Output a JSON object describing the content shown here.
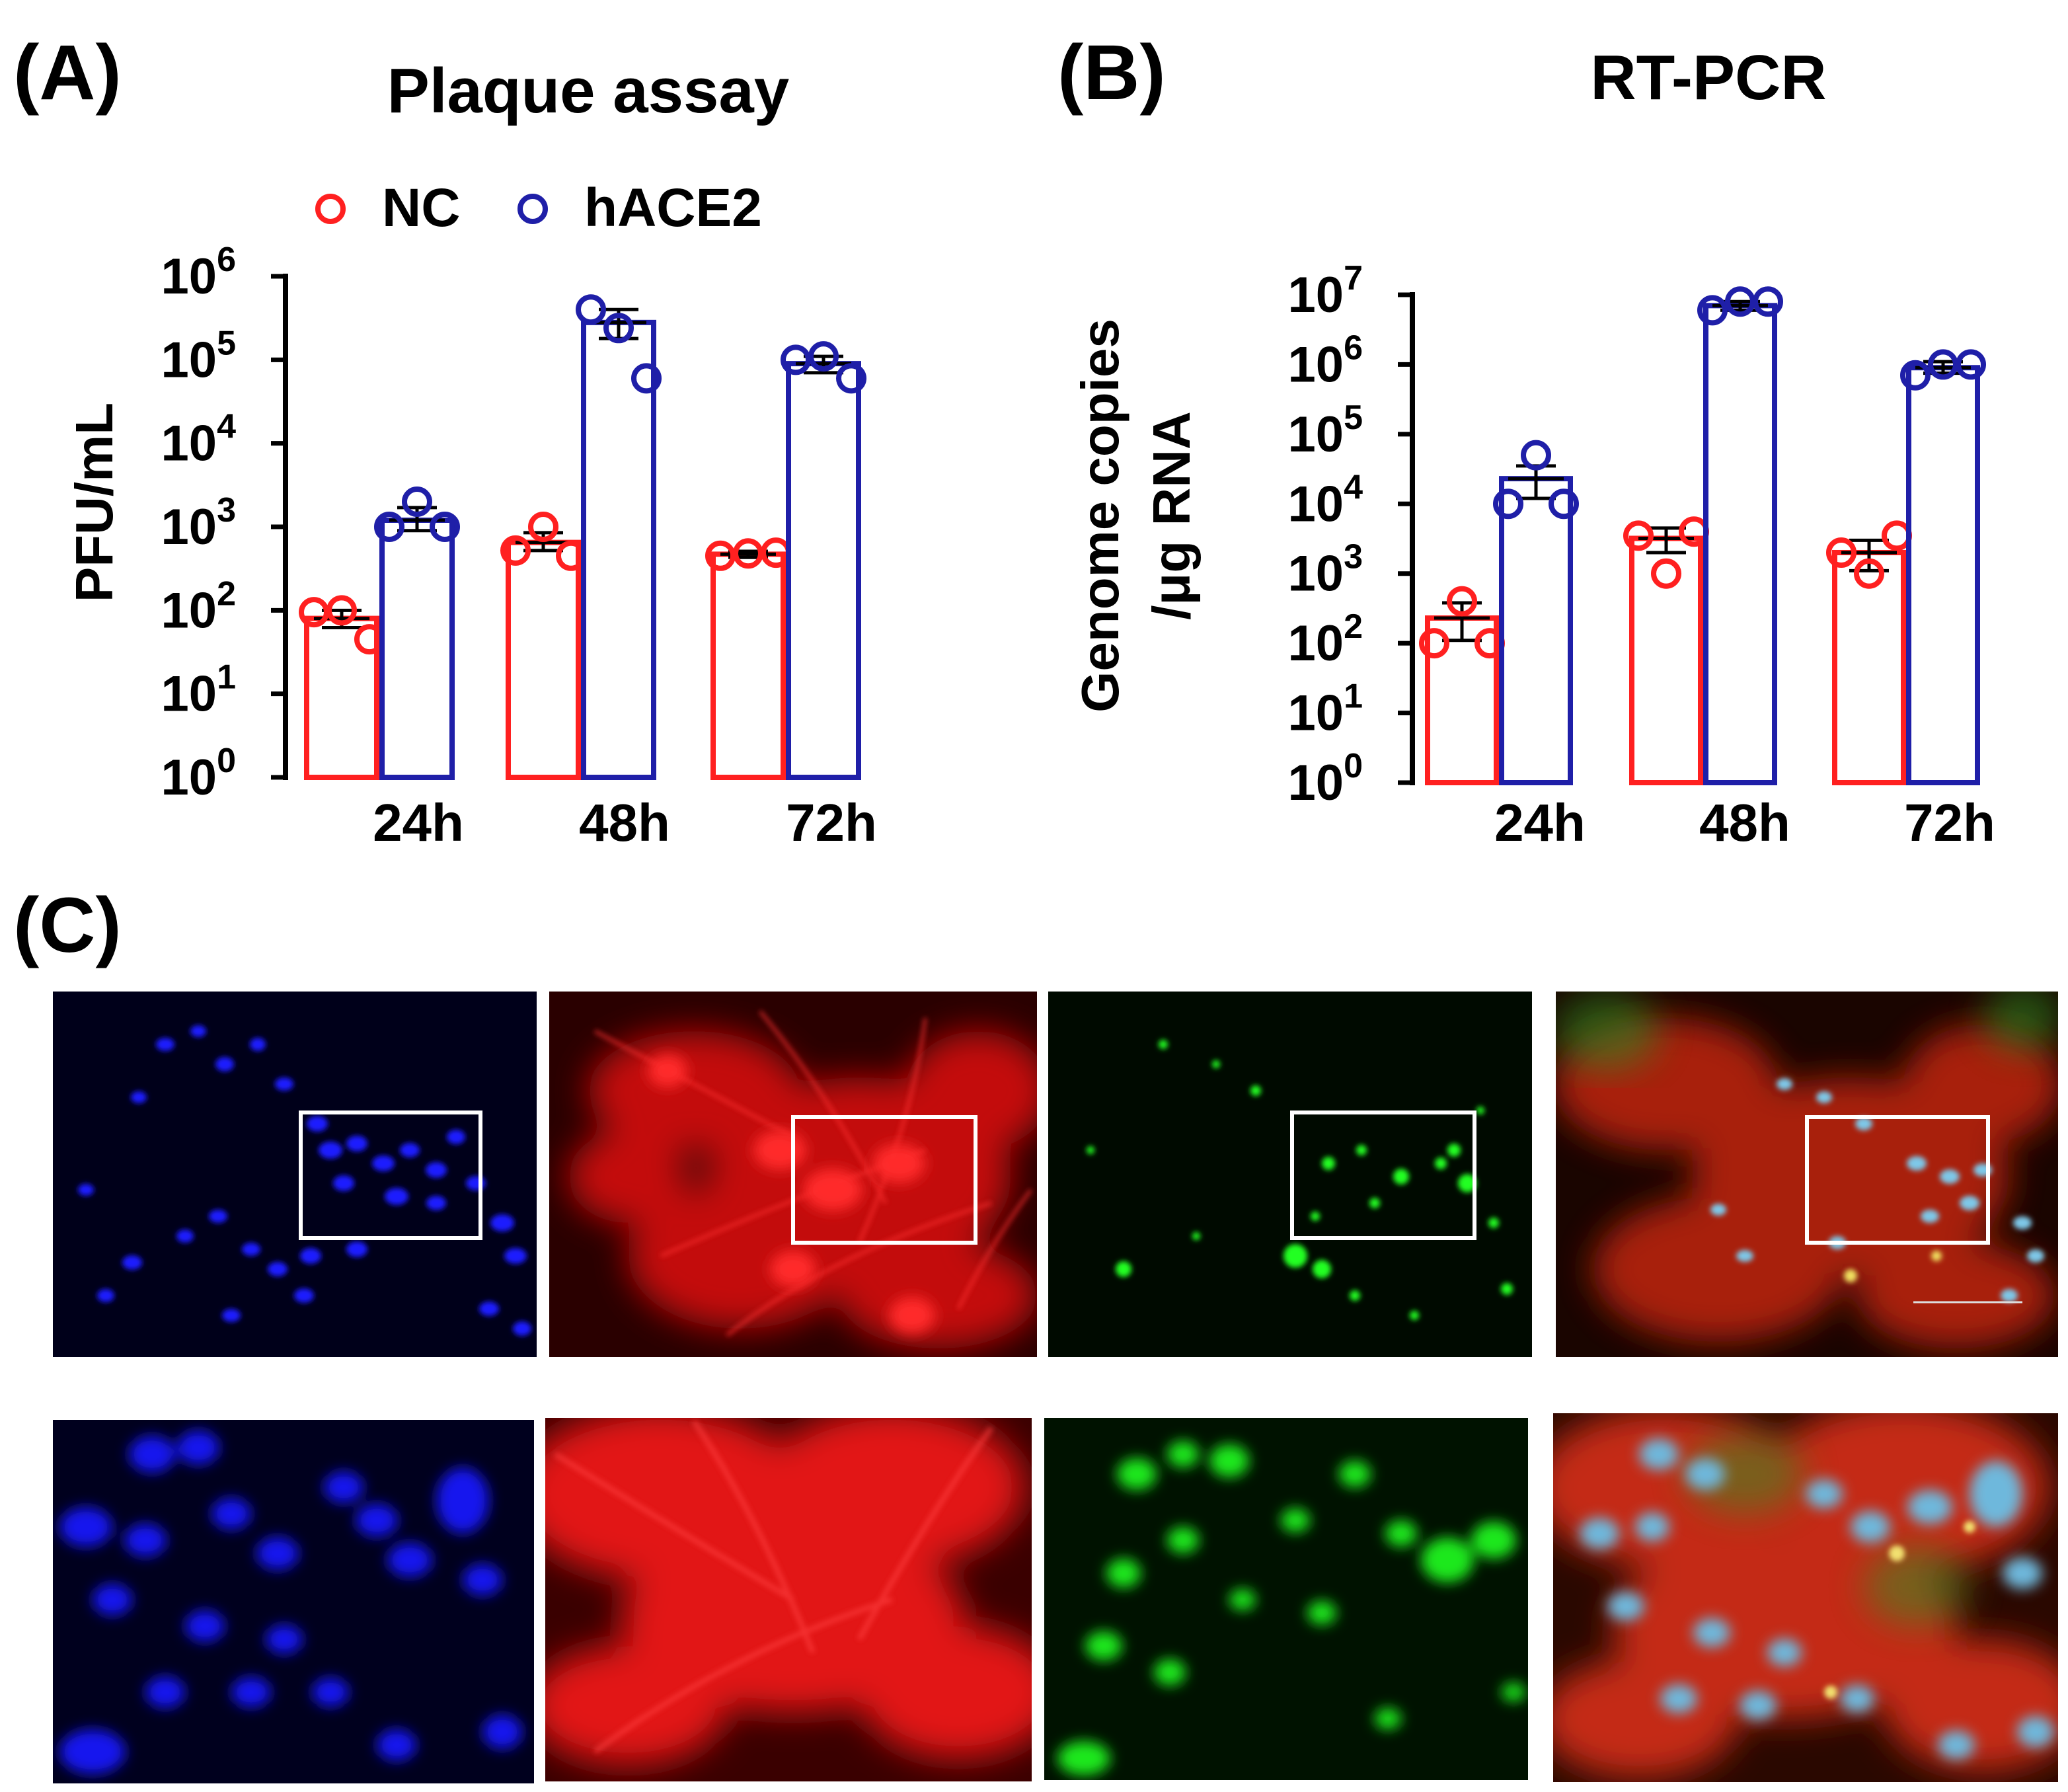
{
  "panels": {
    "a": {
      "letter": "(A)"
    },
    "b": {
      "letter": "(B)"
    },
    "c": {
      "letter": "(C)"
    }
  },
  "legend": {
    "nc": "NC",
    "hace2": "hACE2"
  },
  "colors": {
    "nc": "#ff2020",
    "hace2": "#1f1fa8",
    "axis": "#000000"
  },
  "chart_data": [
    {
      "id": "a",
      "type": "bar",
      "title": "Plaque assay",
      "xlabel": "",
      "ylabel": "PFU/mL",
      "yscale": "log",
      "ylim_exp": [
        0,
        6
      ],
      "ytick_exponents": [
        "0",
        "1",
        "2",
        "3",
        "4",
        "5",
        "6"
      ],
      "categories": [
        "24h",
        "48h",
        "72h"
      ],
      "series": [
        {
          "name": "NC",
          "color": "#ff2020",
          "means": [
            80,
            650,
            470
          ],
          "sem_low": [
            62,
            520,
            430
          ],
          "sem_high": [
            100,
            850,
            510
          ],
          "points": [
            [
              95,
              100,
              45
            ],
            [
              520,
              1000,
              450
            ],
            [
              450,
              480,
              490
            ]
          ]
        },
        {
          "name": "hACE2",
          "color": "#1f1fa8",
          "means": [
            1200,
            280000,
            90000
          ],
          "sem_low": [
            900,
            180000,
            70000
          ],
          "sem_high": [
            1700,
            400000,
            110000
          ],
          "points": [
            [
              1000,
              2000,
              1000
            ],
            [
              400000,
              240000,
              60000
            ],
            [
              100000,
              110000,
              60000
            ]
          ]
        }
      ]
    },
    {
      "id": "b",
      "type": "bar",
      "title": "RT-PCR",
      "xlabel": "",
      "ylabel_line1": "Genome copies",
      "ylabel_line2": "/μg RNA",
      "yscale": "log",
      "ylim_exp": [
        0,
        7
      ],
      "ytick_exponents": [
        "0",
        "1",
        "2",
        "3",
        "4",
        "5",
        "6",
        "7"
      ],
      "categories": [
        "24h",
        "48h",
        "72h"
      ],
      "series": [
        {
          "name": "NC",
          "color": "#ff2020",
          "means": [
            230,
            3200,
            2000
          ],
          "sem_low": [
            110,
            2000,
            1100
          ],
          "sem_high": [
            380,
            4500,
            3000
          ],
          "points": [
            [
              100,
              400,
              100
            ],
            [
              3500,
              1000,
              4000
            ],
            [
              2000,
              1000,
              3500
            ]
          ]
        },
        {
          "name": "hACE2",
          "color": "#1f1fa8",
          "means": [
            23000,
            7000000,
            900000
          ],
          "sem_low": [
            12000,
            6000000,
            750000
          ],
          "sem_high": [
            35000,
            8000000,
            1100000
          ],
          "points": [
            [
              10000,
              50000,
              10000
            ],
            [
              6000000,
              8000000,
              8000000
            ],
            [
              700000,
              1000000,
              1000000
            ]
          ]
        }
      ]
    }
  ],
  "microscopy": {
    "channels": [
      "blue-nuclei",
      "red-cytoskeleton",
      "green-virus",
      "merge"
    ],
    "rows": [
      "overview",
      "zoom"
    ]
  }
}
